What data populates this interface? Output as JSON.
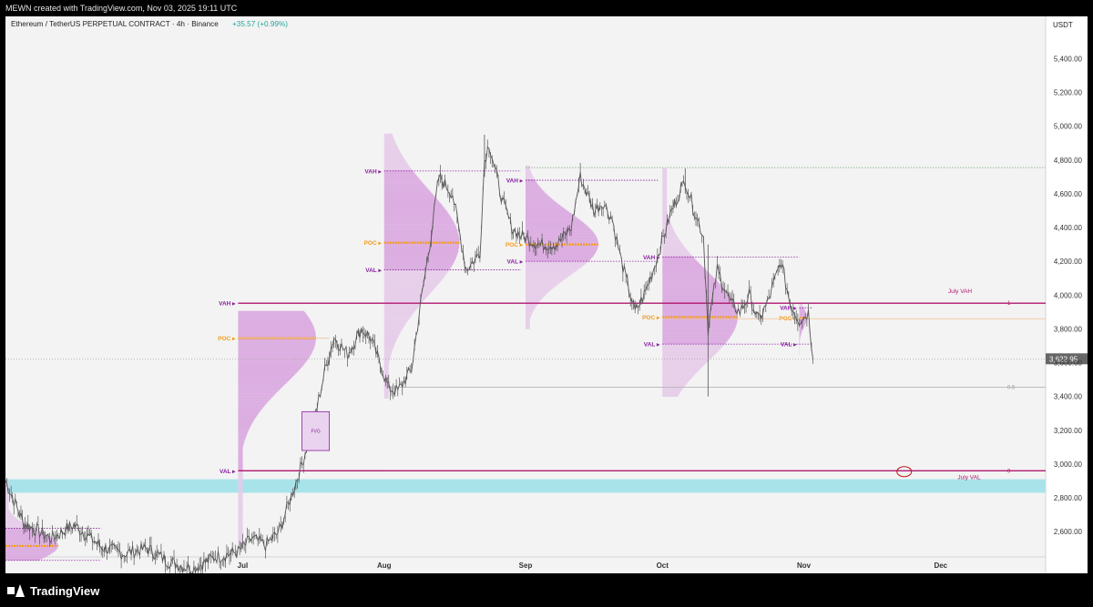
{
  "header": {
    "attribution": "MEWN created with TradingView.com, Nov 03, 2025 19:11 UTC"
  },
  "symbol": {
    "title": "Ethereum / TetherUS PERPETUAL CONTRACT · 4h · Binance",
    "change": "+35.57 (+0.99%)",
    "change_color": "#26a69a"
  },
  "axis": {
    "currency": "USDT"
  },
  "footer": {
    "brand": "TradingView"
  },
  "colors": {
    "pane_bg": "#f3f3f3",
    "axis_bg": "#ffffff",
    "candle": "#555555",
    "magenta": "#b0186e",
    "purple": "#8a1fa0",
    "orange": "#f59b1a",
    "zone": "#a8e3ea"
  },
  "chart_data": {
    "type": "candlestick",
    "y_axis": {
      "ticks": [
        {
          "v": 5400,
          "label": "5,400.00"
        },
        {
          "v": 5200,
          "label": "5,200.00"
        },
        {
          "v": 5000,
          "label": "5,000.00"
        },
        {
          "v": 4800,
          "label": "4,800.00"
        },
        {
          "v": 4600,
          "label": "4,600.00"
        },
        {
          "v": 4400,
          "label": "4,400.00"
        },
        {
          "v": 4200,
          "label": "4,200.00"
        },
        {
          "v": 4000,
          "label": "4,000.00"
        },
        {
          "v": 3800,
          "label": "3,800.00"
        },
        {
          "v": 3600,
          "label": "3,600.00"
        },
        {
          "v": 3400,
          "label": "3,400.00"
        },
        {
          "v": 3200,
          "label": "3,200.00"
        },
        {
          "v": 3000,
          "label": "3,000.00"
        },
        {
          "v": 2800,
          "label": "2,800.00"
        },
        {
          "v": 2600,
          "label": "2,600.00"
        }
      ],
      "ylim": [
        2450,
        5650
      ]
    },
    "x_axis": {
      "labels": [
        {
          "date": "2025-07-01",
          "label": "Jul"
        },
        {
          "date": "2025-08-01",
          "label": "Aug"
        },
        {
          "date": "2025-09-01",
          "label": "Sep"
        },
        {
          "date": "2025-10-01",
          "label": "Oct"
        },
        {
          "date": "2025-11-01",
          "label": "Nov"
        },
        {
          "date": "2025-12-01",
          "label": "Dec"
        }
      ],
      "xlim": [
        "2025-05-10",
        "2025-12-24"
      ]
    },
    "last_price": {
      "value": 3622.95,
      "label": "3,622.95"
    },
    "price_path": [
      [
        "2025-05-10",
        2900
      ],
      [
        "2025-05-14",
        2650
      ],
      [
        "2025-05-20",
        2560
      ],
      [
        "2025-05-25",
        2640
      ],
      [
        "2025-05-31",
        2510
      ],
      [
        "2025-06-05",
        2470
      ],
      [
        "2025-06-10",
        2500
      ],
      [
        "2025-06-15",
        2420
      ],
      [
        "2025-06-20",
        2380
      ],
      [
        "2025-06-25",
        2450
      ],
      [
        "2025-06-30",
        2480
      ],
      [
        "2025-07-03",
        2560
      ],
      [
        "2025-07-06",
        2520
      ],
      [
        "2025-07-09",
        2600
      ],
      [
        "2025-07-11",
        2760
      ],
      [
        "2025-07-14",
        3000
      ],
      [
        "2025-07-17",
        3300
      ],
      [
        "2025-07-19",
        3550
      ],
      [
        "2025-07-21",
        3750
      ],
      [
        "2025-07-24",
        3650
      ],
      [
        "2025-07-27",
        3800
      ],
      [
        "2025-07-29",
        3750
      ],
      [
        "2025-08-02",
        3450
      ],
      [
        "2025-08-04",
        3430
      ],
      [
        "2025-08-07",
        3560
      ],
      [
        "2025-08-09",
        3950
      ],
      [
        "2025-08-11",
        4300
      ],
      [
        "2025-08-13",
        4700
      ],
      [
        "2025-08-16",
        4600
      ],
      [
        "2025-08-18",
        4300
      ],
      [
        "2025-08-19",
        4150
      ],
      [
        "2025-08-22",
        4250
      ],
      [
        "2025-08-23",
        4800
      ],
      [
        "2025-08-24",
        4900
      ],
      [
        "2025-08-27",
        4550
      ],
      [
        "2025-08-29",
        4400
      ],
      [
        "2025-08-31",
        4350
      ],
      [
        "2025-09-04",
        4300
      ],
      [
        "2025-09-08",
        4300
      ],
      [
        "2025-09-11",
        4400
      ],
      [
        "2025-09-13",
        4700
      ],
      [
        "2025-09-16",
        4500
      ],
      [
        "2025-09-18",
        4550
      ],
      [
        "2025-09-20",
        4450
      ],
      [
        "2025-09-22",
        4200
      ],
      [
        "2025-09-25",
        3900
      ],
      [
        "2025-09-27",
        4000
      ],
      [
        "2025-09-29",
        4150
      ],
      [
        "2025-10-03",
        4500
      ],
      [
        "2025-10-06",
        4680
      ],
      [
        "2025-10-08",
        4500
      ],
      [
        "2025-10-10",
        4350
      ],
      [
        "2025-10-11",
        3800
      ],
      [
        "2025-10-13",
        4150
      ],
      [
        "2025-10-16",
        3950
      ],
      [
        "2025-10-18",
        3900
      ],
      [
        "2025-10-20",
        4000
      ],
      [
        "2025-10-22",
        3850
      ],
      [
        "2025-10-24",
        3950
      ],
      [
        "2025-10-27",
        4200
      ],
      [
        "2025-10-29",
        3950
      ],
      [
        "2025-10-31",
        3850
      ],
      [
        "2025-11-01",
        3870
      ],
      [
        "2025-11-02",
        3900
      ],
      [
        "2025-11-03",
        3623
      ]
    ],
    "wicks": [
      {
        "date": "2025-10-11",
        "low": 3400,
        "high": 4300
      },
      {
        "date": "2025-08-23",
        "low": 4700,
        "high": 4950
      },
      {
        "date": "2025-10-06",
        "low": 4600,
        "high": 4750
      }
    ],
    "levels": [
      {
        "name": "july-vah",
        "value": 3952,
        "from": "2025-06-30",
        "to": "2025-12-24",
        "color": "#b0186e",
        "tag": "1",
        "label": "July VAH"
      },
      {
        "name": "july-val",
        "value": 2960,
        "from": "2025-06-30",
        "to": "2025-12-24",
        "color": "#b0186e",
        "tag": "0",
        "label": "July VAL"
      },
      {
        "name": "mid-level",
        "value": 3455,
        "from": "2025-08-04",
        "to": "2025-12-24",
        "color": "#b5b5b5",
        "tag": "0.5",
        "label": ""
      },
      {
        "name": "sep-high",
        "value": 4755,
        "from": "2025-09-01",
        "to": "2025-12-24",
        "color": "#7aa57a",
        "tag": "",
        "label": ""
      },
      {
        "name": "oct-poc-ext",
        "value": 3860,
        "from": "2025-10-01",
        "to": "2025-12-24",
        "color": "#f0c090",
        "tag": "",
        "label": ""
      },
      {
        "name": "jul-poc-ext",
        "value": 3745,
        "from": "2025-06-30",
        "to": "2025-07-20",
        "color": "#f0c090",
        "tag": "",
        "label": ""
      }
    ],
    "volume_profiles": [
      {
        "from": "2025-05-10",
        "to": "2025-05-31",
        "vah": 2620,
        "poc": 2515,
        "val": 2430,
        "low": 2430,
        "high": 2900,
        "labels": {
          "vah": "",
          "poc": "",
          "val": ""
        }
      },
      {
        "from": "2025-06-30",
        "to": "2025-07-31",
        "vah": 3952,
        "poc": 3745,
        "val": 2960,
        "low": 2500,
        "high": 3900,
        "labels": {
          "vah": "VAH",
          "poc": "POC",
          "val": "VAL"
        }
      },
      {
        "from": "2025-08-01",
        "to": "2025-08-31",
        "vah": 4735,
        "poc": 4310,
        "val": 4150,
        "low": 3390,
        "high": 4950,
        "labels": {
          "vah": "VAH",
          "poc": "POC",
          "val": "VAL"
        }
      },
      {
        "from": "2025-09-01",
        "to": "2025-09-30",
        "vah": 4680,
        "poc": 4300,
        "val": 4200,
        "low": 3800,
        "high": 4760,
        "labels": {
          "vah": "VAH",
          "poc": "POC",
          "val": "VAL"
        }
      },
      {
        "from": "2025-10-01",
        "to": "2025-10-31",
        "vah": 4225,
        "poc": 3870,
        "val": 3710,
        "low": 3400,
        "high": 4750,
        "labels": {
          "vah": "VAH",
          "poc": "POC",
          "val": "VAL"
        }
      },
      {
        "from": "2025-10-31",
        "to": "2025-11-03",
        "vah": 3925,
        "poc": 3865,
        "val": 3710,
        "low": 3650,
        "high": 3950,
        "labels": {
          "vah": "VAH",
          "poc": "POC",
          "val": "VAL"
        }
      }
    ],
    "zones": [
      {
        "name": "demand-zone",
        "y1": 2830,
        "y2": 2910,
        "from": "2025-05-10",
        "to": "2025-12-24",
        "color": "#a8e3ea"
      }
    ],
    "fvg": {
      "from": "2025-07-14",
      "to": "2025-07-20",
      "y1": 3080,
      "y2": 3310,
      "label": "FVG"
    },
    "annotation_circle": {
      "date": "2025-11-23",
      "value": 2955
    }
  }
}
